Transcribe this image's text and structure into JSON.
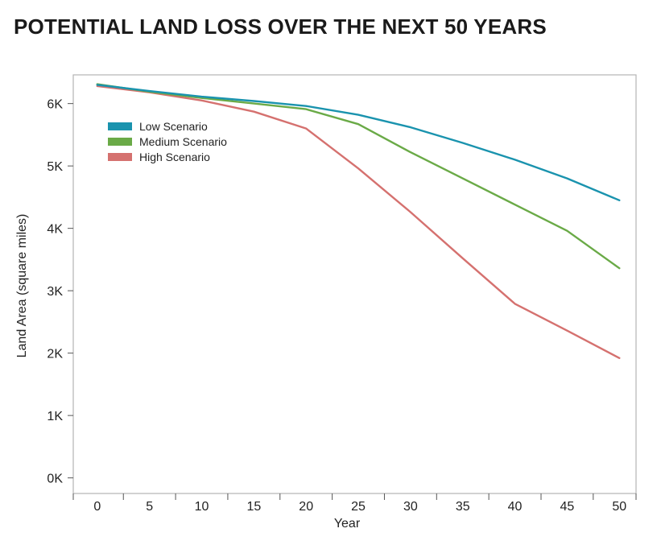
{
  "chart_data": {
    "type": "line",
    "title": "POTENTIAL LAND LOSS OVER THE NEXT 50 YEARS",
    "xlabel": "Year",
    "ylabel": "Land Area (square miles)",
    "xlim": [
      -2.3,
      51.6
    ],
    "ylim": [
      -250,
      6460
    ],
    "x_ticks": [
      0,
      5,
      10,
      15,
      20,
      25,
      30,
      35,
      40,
      45,
      50
    ],
    "x_tick_labels": [
      "0",
      "5",
      "10",
      "15",
      "20",
      "25",
      "30",
      "35",
      "40",
      "45",
      "50"
    ],
    "y_ticks": [
      0,
      1000,
      2000,
      3000,
      4000,
      5000,
      6000
    ],
    "y_tick_labels": [
      "0K",
      "1K",
      "2K",
      "3K",
      "4K",
      "5K",
      "6K"
    ],
    "legend_position": "top-left",
    "grid": false,
    "x": [
      0,
      5,
      10,
      15,
      20,
      25,
      30,
      35,
      40,
      45,
      50
    ],
    "series": [
      {
        "name": "Low Scenario",
        "color": "#1a93ae",
        "values": [
          6300,
          6200,
          6110,
          6040,
          5960,
          5820,
          5620,
          5370,
          5100,
          4800,
          4450
        ]
      },
      {
        "name": "Medium Scenario",
        "color": "#6aaa47",
        "values": [
          6310,
          6190,
          6090,
          6000,
          5910,
          5670,
          5220,
          4800,
          4380,
          3960,
          3360
        ]
      },
      {
        "name": "High Scenario",
        "color": "#d5716f",
        "values": [
          6280,
          6180,
          6050,
          5870,
          5600,
          4960,
          4260,
          3520,
          2790,
          2360,
          1920
        ]
      }
    ]
  }
}
